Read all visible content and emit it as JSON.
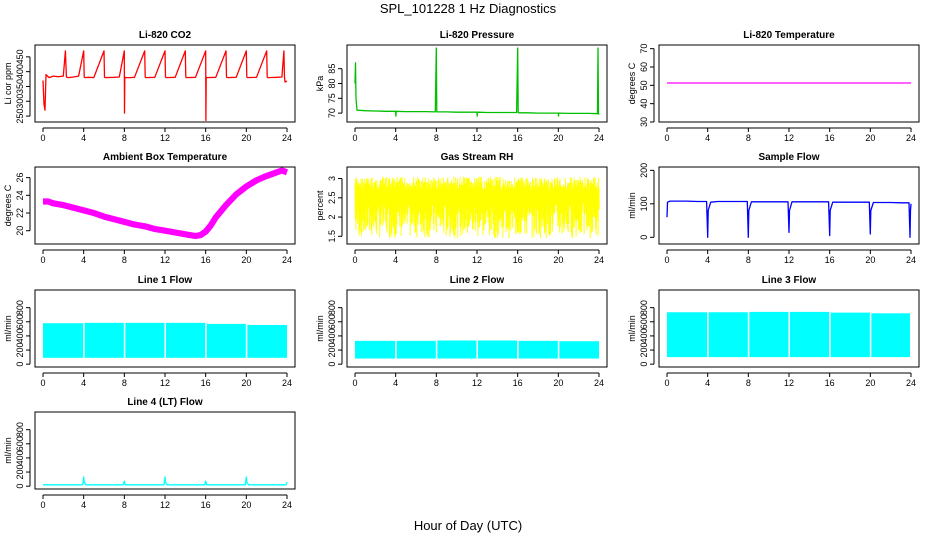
{
  "main_title": "SPL_101228  1 Hz Diagnostics",
  "x_axis_title": "Hour of Day (UTC)",
  "chart_data": [
    {
      "type": "line",
      "title": "Li-820 CO2",
      "xlabel": "",
      "ylabel": "Li cor ppm",
      "color": "#ff0000",
      "xlim": [
        0,
        24
      ],
      "ylim": [
        230,
        490
      ],
      "xticks": [
        0,
        4,
        8,
        12,
        16,
        20,
        24
      ],
      "yticks": [
        250,
        300,
        350,
        400,
        450
      ],
      "series": [
        {
          "x": [
            0,
            0.1,
            0.2,
            0.3,
            0.6,
            1,
            1.5,
            2,
            2.2,
            2.3,
            2.5,
            3,
            3.5,
            4,
            4.05,
            4.1,
            4.5,
            5,
            6,
            6.05,
            6.1,
            7,
            7.5,
            8,
            8.02,
            8.05,
            8.1,
            8.5,
            9,
            10,
            10.05,
            10.1,
            11,
            12,
            12.05,
            12.1,
            13,
            14,
            14.05,
            14.1,
            15,
            16,
            16.02,
            16.05,
            16.1,
            17,
            18,
            18.05,
            18.1,
            19,
            20,
            20.05,
            20.1,
            21,
            22,
            22.05,
            22.1,
            23,
            23.5,
            23.7,
            23.75,
            23.8,
            24
          ],
          "y": [
            370,
            290,
            270,
            390,
            380,
            385,
            383,
            385,
            470,
            382,
            380,
            382,
            385,
            470,
            382,
            380,
            381,
            380,
            470,
            382,
            380,
            381,
            382,
            470,
            260,
            382,
            380,
            380,
            381,
            470,
            382,
            380,
            381,
            470,
            382,
            380,
            381,
            470,
            382,
            380,
            381,
            470,
            235,
            382,
            380,
            381,
            470,
            382,
            380,
            381,
            470,
            382,
            380,
            381,
            470,
            382,
            380,
            381,
            382,
            470,
            380,
            365,
            368
          ]
        }
      ],
      "lineSeries": true
    },
    {
      "type": "line",
      "title": "Li-820 Pressure",
      "xlabel": "",
      "ylabel": "kPa",
      "color": "#00c000",
      "xlim": [
        0,
        24
      ],
      "ylim": [
        67,
        93
      ],
      "xticks": [
        0,
        4,
        8,
        12,
        16,
        20,
        24
      ],
      "yticks": [
        70,
        75,
        80,
        85
      ],
      "series": [
        {
          "x": [
            0,
            0.05,
            0.1,
            0.2,
            1,
            2,
            3,
            4,
            4.02,
            4.05,
            5,
            6,
            7,
            7.9,
            8,
            8.05,
            8.1,
            9,
            10,
            11,
            12,
            12.02,
            12.05,
            13,
            14,
            15,
            15.9,
            16,
            16.05,
            16.1,
            17,
            18,
            19,
            20,
            20.02,
            20.05,
            21,
            22,
            23,
            23.85,
            23.9,
            23.95,
            24
          ],
          "y": [
            80,
            87,
            75,
            71,
            70.8,
            70.7,
            70.6,
            70.6,
            69,
            70.6,
            70.5,
            70.5,
            70.5,
            70.4,
            92,
            70.4,
            70.4,
            70.4,
            70.3,
            70.3,
            70.3,
            69,
            70.3,
            70.2,
            70.2,
            70.2,
            70.2,
            92,
            70.2,
            70.1,
            70.1,
            70.0,
            70.0,
            70.0,
            69,
            70.0,
            69.9,
            69.9,
            69.9,
            69.8,
            92,
            69.8,
            69.5
          ]
        }
      ],
      "lineSeries": true
    },
    {
      "type": "line",
      "title": "Li-820 Temperature",
      "xlabel": "",
      "ylabel": "degrees C",
      "color": "#ff00ff",
      "xlim": [
        0,
        24
      ],
      "ylim": [
        30,
        72
      ],
      "xticks": [
        0,
        4,
        8,
        12,
        16,
        20,
        24
      ],
      "yticks": [
        30,
        40,
        50,
        60,
        70
      ],
      "series": [
        {
          "x": [
            0,
            24
          ],
          "y": [
            51.3,
            51.3
          ]
        }
      ],
      "lineSeries": true
    },
    {
      "type": "line",
      "title": "Ambient Box Temperature",
      "xlabel": "",
      "ylabel": "degrees C",
      "color": "#ff00ff",
      "xlim": [
        0,
        24
      ],
      "ylim": [
        18.5,
        27.2
      ],
      "xticks": [
        0,
        4,
        8,
        12,
        16,
        20,
        24
      ],
      "yticks": [
        20,
        22,
        24,
        26
      ],
      "band": 0.35,
      "series": [
        {
          "x": [
            0,
            0.5,
            1,
            2,
            3,
            4,
            5,
            6,
            7,
            8,
            9,
            10,
            11,
            12,
            13,
            14,
            15,
            15.5,
            16,
            16.5,
            17,
            18,
            19,
            20,
            21,
            22,
            23,
            23.5,
            24
          ],
          "y": [
            23.3,
            23.3,
            23.1,
            22.9,
            22.6,
            22.3,
            22.0,
            21.6,
            21.3,
            21.0,
            20.7,
            20.5,
            20.2,
            20.0,
            19.8,
            19.6,
            19.4,
            19.5,
            19.9,
            20.6,
            21.5,
            22.9,
            24.1,
            25.0,
            25.7,
            26.2,
            26.6,
            26.8,
            26.6
          ]
        }
      ],
      "lineSeries": true
    },
    {
      "type": "line",
      "title": "Gas Stream RH",
      "xlabel": "",
      "ylabel": "percent",
      "color": "#ffff00",
      "xlim": [
        0,
        24
      ],
      "ylim": [
        1.3,
        3.3
      ],
      "xticks": [
        0,
        4,
        8,
        12,
        16,
        20,
        24
      ],
      "yticks": [
        1.5,
        2.0,
        2.5,
        3.0
      ],
      "noise": {
        "upper": 3.05,
        "lower": 1.45,
        "mid": 2.6
      },
      "series": [
        {
          "x": [
            0,
            24
          ],
          "y": [
            2.6,
            2.6
          ]
        }
      ],
      "lineSeries": true
    },
    {
      "type": "line",
      "title": "Sample Flow",
      "xlabel": "",
      "ylabel": "ml/min",
      "color": "#0000ff",
      "xlim": [
        0,
        24
      ],
      "ylim": [
        -20,
        210
      ],
      "xticks": [
        0,
        4,
        8,
        12,
        16,
        20,
        24
      ],
      "yticks": [
        0,
        100,
        200
      ],
      "series": [
        {
          "x": [
            0,
            0.05,
            0.3,
            1,
            2,
            3,
            3.9,
            4,
            4.05,
            4.3,
            5,
            6,
            7,
            7.9,
            8,
            8.05,
            8.3,
            9,
            10,
            11,
            11.9,
            12,
            12.05,
            12.3,
            13,
            14,
            15,
            15.9,
            16,
            16.05,
            16.3,
            17,
            18,
            19,
            19.9,
            20,
            20.05,
            20.3,
            21,
            22,
            23,
            23.8,
            23.9,
            23.95,
            24
          ],
          "y": [
            60,
            105,
            108,
            108,
            108,
            107,
            107,
            0,
            80,
            105,
            107,
            107,
            107,
            107,
            0,
            80,
            106,
            106,
            106,
            106,
            106,
            15,
            80,
            106,
            106,
            106,
            106,
            106,
            5,
            80,
            105,
            105,
            105,
            105,
            105,
            10,
            80,
            104,
            104,
            104,
            103,
            103,
            0,
            80,
            100
          ]
        }
      ],
      "lineSeries": true
    },
    {
      "type": "bar",
      "title": "Line 1 Flow",
      "xlabel": "",
      "ylabel": "ml/min",
      "color": "#00ffff",
      "xlim": [
        0,
        24
      ],
      "ylim": [
        -40,
        1050
      ],
      "xticks": [
        0,
        4,
        8,
        12,
        16,
        20,
        24
      ],
      "yticks": [
        0,
        200,
        400,
        600,
        800
      ],
      "blocks": {
        "x_start": [
          0,
          4.1,
          8.1,
          12.1,
          16.1,
          20.1
        ],
        "x_end": [
          3.95,
          7.95,
          11.95,
          15.95,
          19.95,
          24
        ],
        "top": [
          580,
          585,
          585,
          585,
          570,
          555
        ],
        "bottom": 90
      }
    },
    {
      "type": "bar",
      "title": "Line 2 Flow",
      "xlabel": "",
      "ylabel": "ml/min",
      "color": "#00ffff",
      "xlim": [
        0,
        24
      ],
      "ylim": [
        -40,
        1050
      ],
      "xticks": [
        0,
        4,
        8,
        12,
        16,
        20,
        24
      ],
      "yticks": [
        0,
        200,
        400,
        600,
        800
      ],
      "blocks": {
        "x_start": [
          0,
          4.1,
          8.1,
          12.1,
          16.1,
          20.1
        ],
        "x_end": [
          3.95,
          7.95,
          11.95,
          15.95,
          19.95,
          24
        ],
        "top": [
          330,
          330,
          335,
          335,
          330,
          325
        ],
        "bottom": 80
      }
    },
    {
      "type": "bar",
      "title": "Line 3 Flow",
      "xlabel": "",
      "ylabel": "ml/min",
      "color": "#00ffff",
      "xlim": [
        0,
        24
      ],
      "ylim": [
        -40,
        1050
      ],
      "xticks": [
        0,
        4,
        8,
        12,
        16,
        20,
        24
      ],
      "yticks": [
        0,
        200,
        400,
        600,
        800
      ],
      "blocks": {
        "x_start": [
          0,
          4.1,
          8.1,
          12.1,
          16.1,
          20.1
        ],
        "x_end": [
          3.95,
          7.95,
          11.95,
          15.95,
          19.95,
          23.9
        ],
        "top": [
          735,
          735,
          740,
          740,
          730,
          720
        ],
        "bottom": 100
      }
    },
    {
      "type": "line",
      "title": "Line 4 (LT) Flow",
      "xlabel": "",
      "ylabel": "ml/min",
      "color": "#00ffff",
      "xlim": [
        0,
        24
      ],
      "ylim": [
        -40,
        1050
      ],
      "xticks": [
        0,
        4,
        8,
        12,
        16,
        20,
        24
      ],
      "yticks": [
        0,
        200,
        400,
        600,
        800
      ],
      "series": [
        {
          "x": [
            0,
            3.9,
            4,
            4.05,
            4.2,
            7.9,
            8,
            8.1,
            11.9,
            12,
            12.05,
            12.2,
            15.9,
            16,
            16.1,
            19.9,
            20,
            20.05,
            20.2,
            23.9,
            24
          ],
          "y": [
            20,
            20,
            130,
            60,
            20,
            20,
            70,
            20,
            20,
            130,
            60,
            20,
            20,
            70,
            20,
            20,
            130,
            60,
            20,
            20,
            60
          ]
        }
      ],
      "lineSeries": true
    }
  ]
}
